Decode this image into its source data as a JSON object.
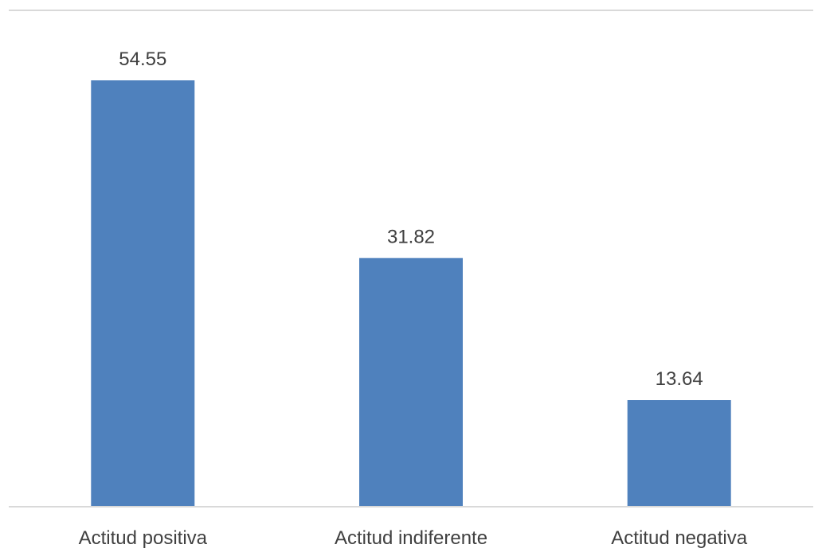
{
  "chart_data": {
    "type": "bar",
    "categories": [
      "Actitud positiva",
      "Actitud indiferente",
      "Actitud negativa"
    ],
    "values": [
      54.55,
      31.82,
      13.64
    ],
    "data_labels": [
      "54.55",
      "31.82",
      "13.64"
    ],
    "ylim": [
      0,
      60
    ],
    "grid": false,
    "legend": "none",
    "colors": {
      "bar": "#4f81bd",
      "axis_line": "#d9d9d9",
      "text": "#404040"
    }
  }
}
